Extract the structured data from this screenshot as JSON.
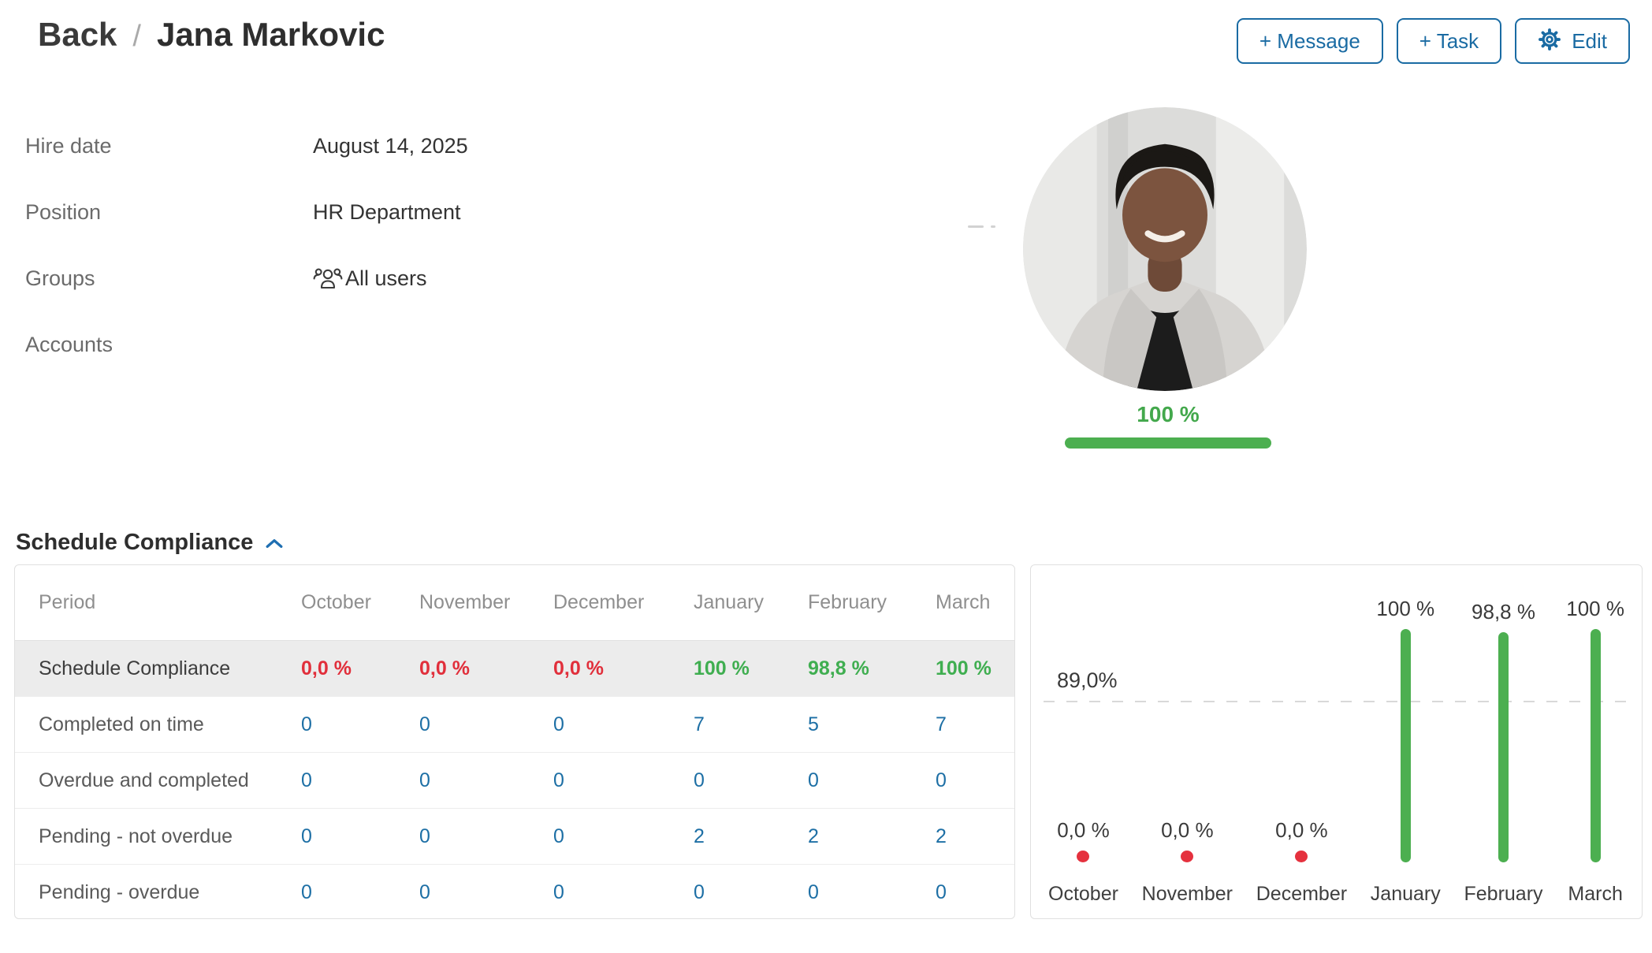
{
  "breadcrumb": {
    "back_label": "Back",
    "separator": "/",
    "current": "Jana Markovic"
  },
  "actions": {
    "message_label": "+ Message",
    "task_label": "+ Task",
    "edit_label": "Edit"
  },
  "profile": {
    "fields": [
      {
        "label": "Hire date",
        "value": "August 14, 2025"
      },
      {
        "label": "Position",
        "value": "HR Department"
      },
      {
        "label": "Groups",
        "value": "All users"
      },
      {
        "label": "Accounts",
        "value": ""
      }
    ],
    "overall_score": "100 %"
  },
  "section_title": "Schedule Compliance",
  "table": {
    "columns": [
      "Period",
      "October",
      "November",
      "December",
      "January",
      "February",
      "March"
    ],
    "rows": [
      {
        "label": "Schedule Compliance",
        "values": [
          "0,0 %",
          "0,0 %",
          "0,0 %",
          "100 %",
          "98,8 %",
          "100 %"
        ],
        "statuses": [
          "bad",
          "bad",
          "bad",
          "good",
          "good",
          "good"
        ]
      },
      {
        "label": "Completed on time",
        "values": [
          "0",
          "0",
          "0",
          "7",
          "5",
          "7"
        ]
      },
      {
        "label": "Overdue and completed",
        "values": [
          "0",
          "0",
          "0",
          "0",
          "0",
          "0"
        ]
      },
      {
        "label": "Pending - not overdue",
        "values": [
          "0",
          "0",
          "0",
          "2",
          "2",
          "2"
        ]
      },
      {
        "label": "Pending - overdue",
        "values": [
          "0",
          "0",
          "0",
          "0",
          "0",
          "0"
        ]
      }
    ]
  },
  "chart_data": {
    "type": "bar",
    "title": "",
    "categories": [
      "October",
      "November",
      "December",
      "January",
      "February",
      "March"
    ],
    "values": [
      0.0,
      0.0,
      0.0,
      100,
      98.8,
      100
    ],
    "value_labels": [
      "0,0 %",
      "0,0 %",
      "0,0 %",
      "100 %",
      "98,8 %",
      "100 %"
    ],
    "threshold_value": 89.0,
    "threshold_label": "89,0%",
    "ylim": [
      0,
      100
    ],
    "grid": "dashed threshold line only",
    "legend": "none",
    "zero_marker": "red dot"
  },
  "colors": {
    "accent_blue": "#1a6ba3",
    "link_blue": "#1d6fa5",
    "bar_green": "#4caf50",
    "positive_green": "#3fae50",
    "negative_red": "#e12f3b",
    "highlight_row": "#ececec"
  }
}
